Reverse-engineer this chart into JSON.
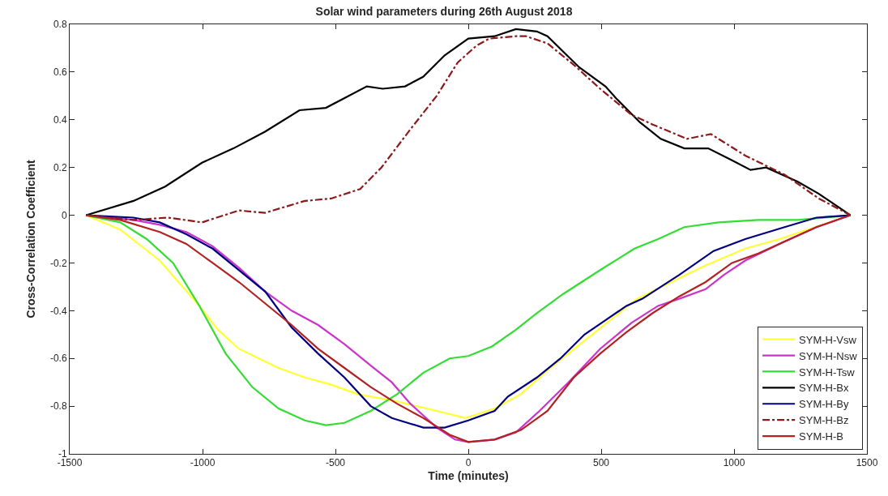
{
  "chart_data": {
    "type": "line",
    "title": "Solar wind parameters during 26th August 2018",
    "xlabel": "Time (minutes)",
    "ylabel": "Cross-Correlation Coefficient",
    "xlim": [
      -1500,
      1500
    ],
    "xticks": [
      -1500,
      -1000,
      -500,
      0,
      500,
      1000,
      1500
    ],
    "ylim": [
      -1,
      0.8
    ],
    "yticks": [
      -1,
      -0.8,
      -0.6,
      -0.4,
      -0.2,
      0,
      0.2,
      0.4,
      0.6,
      0.8
    ],
    "legend": "bottom right",
    "marker": "none",
    "series": [
      {
        "name": "SYM-H-Vsw",
        "color": "#ffff33",
        "x": [
          -1438,
          -1310,
          -1161,
          -1012,
          -942,
          -863,
          -714,
          -615,
          -516,
          -417,
          -268,
          -119,
          -10,
          99,
          198,
          298,
          635,
          893,
          1042,
          1171,
          1438
        ],
        "values": [
          0,
          -0.06,
          -0.19,
          -0.38,
          -0.48,
          -0.56,
          -0.64,
          -0.68,
          -0.71,
          -0.75,
          -0.78,
          -0.82,
          -0.85,
          -0.81,
          -0.75,
          -0.65,
          -0.35,
          -0.21,
          -0.14,
          -0.1,
          0
        ]
      },
      {
        "name": "SYM-H-Nsw",
        "color": "#cc33cc",
        "x": [
          -1438,
          -1260,
          -1161,
          -1061,
          -962,
          -863,
          -764,
          -665,
          -565,
          -466,
          -367,
          -288,
          -218,
          -119,
          -50,
          0,
          99,
          179,
          268,
          377,
          496,
          615,
          714,
          794,
          893,
          962,
          1042,
          1171,
          1310,
          1438
        ],
        "values": [
          0,
          -0.02,
          -0.04,
          -0.07,
          -0.13,
          -0.22,
          -0.32,
          -0.4,
          -0.46,
          -0.54,
          -0.63,
          -0.7,
          -0.79,
          -0.89,
          -0.94,
          -0.95,
          -0.94,
          -0.91,
          -0.82,
          -0.7,
          -0.56,
          -0.45,
          -0.38,
          -0.35,
          -0.31,
          -0.25,
          -0.19,
          -0.12,
          -0.05,
          0
        ]
      },
      {
        "name": "SYM-H-Tsw",
        "color": "#33dd33",
        "x": [
          -1438,
          -1310,
          -1210,
          -1111,
          -1012,
          -913,
          -813,
          -714,
          -615,
          -536,
          -466,
          -367,
          -268,
          -169,
          -70,
          0,
          89,
          179,
          258,
          357,
          496,
          625,
          714,
          813,
          942,
          1091,
          1240,
          1438
        ],
        "values": [
          0,
          -0.03,
          -0.1,
          -0.2,
          -0.38,
          -0.58,
          -0.72,
          -0.81,
          -0.86,
          -0.88,
          -0.87,
          -0.82,
          -0.75,
          -0.66,
          -0.6,
          -0.59,
          -0.55,
          -0.48,
          -0.41,
          -0.33,
          -0.23,
          -0.14,
          -0.1,
          -0.05,
          -0.03,
          -0.02,
          -0.02,
          0
        ]
      },
      {
        "name": "SYM-H-Bx",
        "color": "#000000",
        "x": [
          -1438,
          -1260,
          -1141,
          -1002,
          -884,
          -765,
          -635,
          -536,
          -467,
          -382,
          -322,
          -238,
          -170,
          -89,
          0,
          99,
          179,
          258,
          298,
          417,
          516,
          556,
          645,
          724,
          813,
          903,
          992,
          1062,
          1121,
          1240,
          1319,
          1438
        ],
        "values": [
          0,
          0.06,
          0.12,
          0.22,
          0.28,
          0.35,
          0.44,
          0.45,
          0.49,
          0.54,
          0.53,
          0.54,
          0.58,
          0.67,
          0.74,
          0.75,
          0.78,
          0.77,
          0.75,
          0.62,
          0.54,
          0.49,
          0.39,
          0.32,
          0.28,
          0.28,
          0.23,
          0.19,
          0.2,
          0.14,
          0.09,
          0
        ]
      },
      {
        "name": "SYM-H-By",
        "color": "#000080",
        "x": [
          -1438,
          -1260,
          -1161,
          -1061,
          -962,
          -863,
          -764,
          -665,
          -565,
          -466,
          -367,
          -288,
          -169,
          -89,
          0,
          99,
          149,
          258,
          347,
          437,
          516,
          595,
          655,
          794,
          923,
          1042,
          1190,
          1310,
          1438
        ],
        "values": [
          0,
          -0.01,
          -0.03,
          -0.08,
          -0.14,
          -0.23,
          -0.32,
          -0.47,
          -0.58,
          -0.68,
          -0.8,
          -0.85,
          -0.89,
          -0.89,
          -0.86,
          -0.82,
          -0.76,
          -0.68,
          -0.6,
          -0.5,
          -0.44,
          -0.38,
          -0.35,
          -0.25,
          -0.15,
          -0.1,
          -0.05,
          -0.01,
          0
        ]
      },
      {
        "name": "SYM-H-Bz",
        "color": "#8b1a1a",
        "line_style": "dashed",
        "x": [
          -1438,
          -1260,
          -1131,
          -1002,
          -863,
          -765,
          -615,
          -516,
          -407,
          -327,
          -218,
          -119,
          -40,
          30,
          79,
          179,
          218,
          298,
          397,
          496,
          615,
          694,
          823,
          913,
          1042,
          1190,
          1319,
          1438
        ],
        "values": [
          0,
          -0.02,
          -0.01,
          -0.03,
          0.02,
          0.01,
          0.06,
          0.07,
          0.11,
          0.2,
          0.36,
          0.5,
          0.64,
          0.71,
          0.74,
          0.75,
          0.75,
          0.72,
          0.63,
          0.53,
          0.42,
          0.38,
          0.32,
          0.34,
          0.25,
          0.17,
          0.07,
          0
        ]
      },
      {
        "name": "SYM-H-B",
        "color": "#b22222",
        "x": [
          -1438,
          -1310,
          -1161,
          -1061,
          -962,
          -863,
          -764,
          -665,
          -565,
          -466,
          -367,
          -268,
          -169,
          -70,
          0,
          99,
          198,
          298,
          397,
          496,
          595,
          694,
          794,
          893,
          992,
          1091,
          1190,
          1310,
          1438
        ],
        "values": [
          0,
          -0.02,
          -0.07,
          -0.12,
          -0.2,
          -0.28,
          -0.37,
          -0.46,
          -0.56,
          -0.64,
          -0.72,
          -0.79,
          -0.85,
          -0.92,
          -0.95,
          -0.94,
          -0.9,
          -0.82,
          -0.68,
          -0.58,
          -0.49,
          -0.41,
          -0.34,
          -0.28,
          -0.2,
          -0.16,
          -0.11,
          -0.05,
          0
        ]
      }
    ]
  }
}
